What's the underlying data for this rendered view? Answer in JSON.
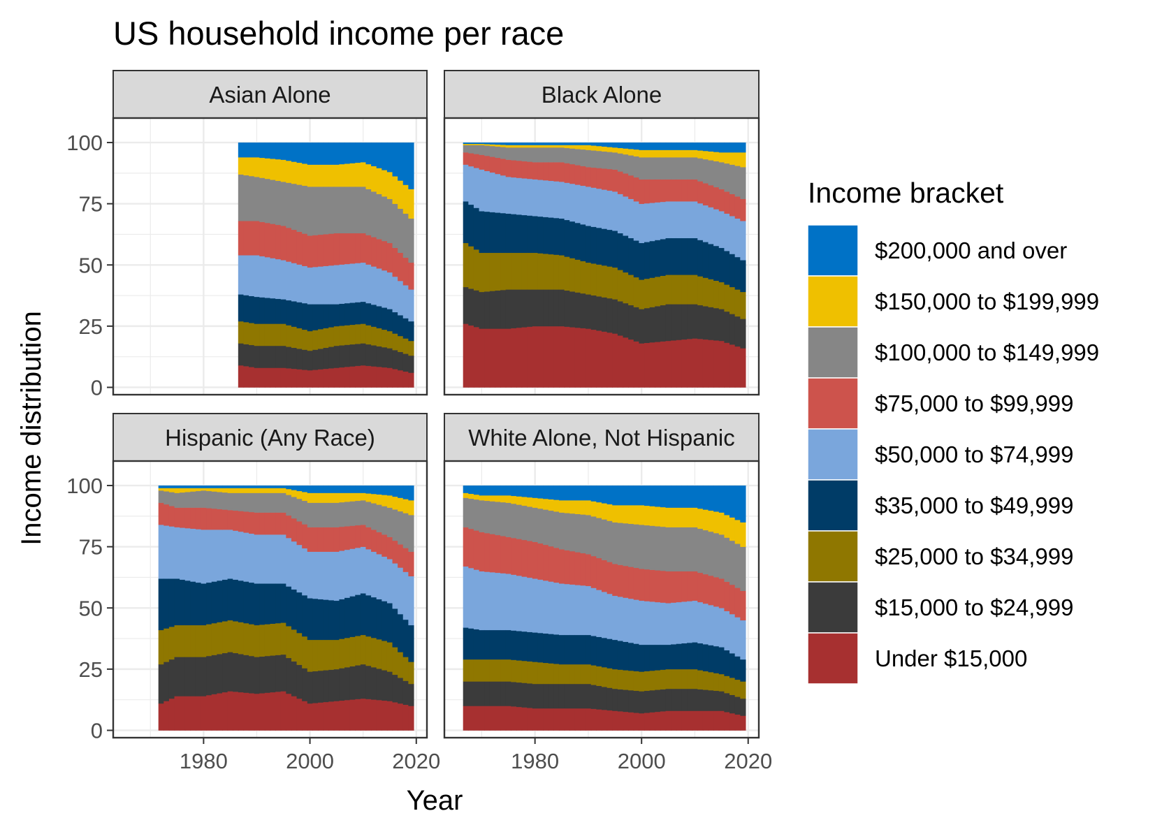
{
  "chart_data": {
    "type": "area",
    "stacked": true,
    "step": true,
    "title": "US household income per race",
    "xlabel": "Year",
    "ylabel": "Income distribution",
    "xlim": [
      1963,
      2022
    ],
    "ylim": [
      -3,
      110
    ],
    "x_ticks": [
      1980,
      2000,
      2020
    ],
    "y_ticks": [
      0,
      25,
      50,
      75,
      100
    ],
    "grid": true,
    "legend": {
      "title": "Income bracket",
      "position": "right",
      "entries": [
        {
          "label": "$200,000 and over",
          "color": "#0072C6"
        },
        {
          "label": "$150,000 to $199,999",
          "color": "#EFC000"
        },
        {
          "label": "$100,000 to $149,999",
          "color": "#868686"
        },
        {
          "label": "$75,000 to $99,999",
          "color": "#CD534C"
        },
        {
          "label": "$50,000 to $74,999",
          "color": "#7AA6DC"
        },
        {
          "label": "$35,000 to $49,999",
          "color": "#003C67"
        },
        {
          "label": "$25,000 to $34,999",
          "color": "#8F7700"
        },
        {
          "label": "$15,000 to $24,999",
          "color": "#3B3B3B"
        },
        {
          "label": "Under $15,000",
          "color": "#A73030"
        }
      ]
    },
    "brackets_bottom_to_top": [
      "Under $15,000",
      "$15,000 to $24,999",
      "$25,000 to $34,999",
      "$35,000 to $49,999",
      "$50,000 to $74,999",
      "$75,000 to $99,999",
      "$100,000 to $149,999",
      "$150,000 to $199,999",
      "$200,000 and over"
    ],
    "facets": [
      {
        "name": "Asian Alone",
        "series": [
          {
            "x": 1987,
            "shares": [
              9,
              9,
              9,
              11,
              16,
              14,
              19,
              7,
              6
            ]
          },
          {
            "x": 1990,
            "shares": [
              8,
              9,
              9,
              11,
              17,
              14,
              18,
              8,
              6
            ]
          },
          {
            "x": 1995,
            "shares": [
              8,
              9,
              9,
              10,
              16,
              14,
              18,
              9,
              7
            ]
          },
          {
            "x": 2000,
            "shares": [
              7,
              8,
              8,
              11,
              15,
              13,
              20,
              9,
              9
            ]
          },
          {
            "x": 2005,
            "shares": [
              8,
              9,
              8,
              9,
              16,
              13,
              19,
              9,
              9
            ]
          },
          {
            "x": 2010,
            "shares": [
              9,
              9,
              8,
              9,
              16,
              12,
              19,
              10,
              8
            ]
          },
          {
            "x": 2015,
            "shares": [
              8,
              8,
              7,
              9,
              15,
              12,
              18,
              11,
              12
            ]
          },
          {
            "x": 2019,
            "shares": [
              6,
              7,
              6,
              8,
              13,
              11,
              18,
              12,
              19
            ]
          }
        ]
      },
      {
        "name": "Black Alone",
        "series": [
          {
            "x": 1967,
            "shares": [
              26,
              15,
              18,
              17,
              15,
              5,
              3,
              0.5,
              0.5
            ]
          },
          {
            "x": 1970,
            "shares": [
              24,
              15,
              16,
              17,
              17,
              6,
              4,
              0.5,
              0.5
            ]
          },
          {
            "x": 1975,
            "shares": [
              24,
              16,
              15,
              16,
              15,
              7,
              5,
              1,
              1
            ]
          },
          {
            "x": 1980,
            "shares": [
              25,
              15,
              15,
              15,
              15,
              7,
              6,
              1,
              1
            ]
          },
          {
            "x": 1985,
            "shares": [
              25,
              15,
              14,
              15,
              15,
              8,
              6,
              1,
              1
            ]
          },
          {
            "x": 1990,
            "shares": [
              24,
              14,
              13,
              15,
              16,
              8,
              7,
              2,
              1
            ]
          },
          {
            "x": 1995,
            "shares": [
              22,
              14,
              13,
              15,
              16,
              9,
              7,
              2,
              2
            ]
          },
          {
            "x": 2000,
            "shares": [
              18,
              14,
              12,
              15,
              16,
              10,
              9,
              3,
              3
            ]
          },
          {
            "x": 2005,
            "shares": [
              19,
              15,
              12,
              15,
              15,
              9,
              9,
              3,
              3
            ]
          },
          {
            "x": 2010,
            "shares": [
              20,
              14,
              12,
              15,
              15,
              9,
              9,
              3,
              3
            ]
          },
          {
            "x": 2015,
            "shares": [
              19,
              13,
              11,
              14,
              15,
              9,
              11,
              4,
              4
            ]
          },
          {
            "x": 2019,
            "shares": [
              16,
              12,
              11,
              13,
              16,
              9,
              13,
              6,
              4
            ]
          }
        ]
      },
      {
        "name": "Hispanic (Any Race)",
        "series": [
          {
            "x": 1972,
            "shares": [
              11,
              16,
              14,
              21,
              22,
              9,
              5,
              1,
              1
            ]
          },
          {
            "x": 1975,
            "shares": [
              14,
              16,
              13,
              19,
              21,
              8,
              6,
              2,
              1
            ]
          },
          {
            "x": 1980,
            "shares": [
              14,
              16,
              13,
              17,
              22,
              9,
              7,
              1,
              1
            ]
          },
          {
            "x": 1985,
            "shares": [
              16,
              16,
              13,
              17,
              20,
              8,
              7,
              2,
              1
            ]
          },
          {
            "x": 1990,
            "shares": [
              15,
              15,
              13,
              17,
              20,
              9,
              8,
              2,
              1
            ]
          },
          {
            "x": 1995,
            "shares": [
              16,
              15,
              13,
              16,
              20,
              9,
              8,
              2,
              1
            ]
          },
          {
            "x": 2000,
            "shares": [
              11,
              13,
              13,
              17,
              19,
              10,
              10,
              4,
              3
            ]
          },
          {
            "x": 2005,
            "shares": [
              12,
              13,
              12,
              16,
              20,
              10,
              10,
              4,
              3
            ]
          },
          {
            "x": 2010,
            "shares": [
              13,
              14,
              12,
              17,
              19,
              9,
              10,
              3,
              3
            ]
          },
          {
            "x": 2015,
            "shares": [
              12,
              12,
              12,
              16,
              18,
              9,
              12,
              5,
              4
            ]
          },
          {
            "x": 2019,
            "shares": [
              10,
              9,
              9,
              15,
              20,
              10,
              15,
              6,
              6
            ]
          }
        ]
      },
      {
        "name": "White Alone, Not Hispanic",
        "series": [
          {
            "x": 1967,
            "shares": [
              10,
              10,
              9,
              13,
              25,
              16,
              12,
              2,
              3
            ]
          },
          {
            "x": 1970,
            "shares": [
              10,
              10,
              9,
              12,
              24,
              16,
              13,
              2,
              4
            ]
          },
          {
            "x": 1975,
            "shares": [
              10,
              10,
              9,
              12,
              23,
              15,
              14,
              3,
              4
            ]
          },
          {
            "x": 1980,
            "shares": [
              9,
              10,
              9,
              12,
              22,
              15,
              14,
              4,
              5
            ]
          },
          {
            "x": 1985,
            "shares": [
              9,
              10,
              8,
              12,
              21,
              14,
              15,
              5,
              6
            ]
          },
          {
            "x": 1990,
            "shares": [
              9,
              10,
              8,
              12,
              20,
              13,
              16,
              6,
              6
            ]
          },
          {
            "x": 1995,
            "shares": [
              8,
              9,
              8,
              12,
              18,
              13,
              17,
              7,
              8
            ]
          },
          {
            "x": 2000,
            "shares": [
              7,
              9,
              8,
              11,
              18,
              13,
              18,
              8,
              8
            ]
          },
          {
            "x": 2005,
            "shares": [
              8,
              9,
              8,
              10,
              17,
              13,
              18,
              8,
              9
            ]
          },
          {
            "x": 2010,
            "shares": [
              8,
              9,
              8,
              11,
              17,
              12,
              18,
              8,
              9
            ]
          },
          {
            "x": 2015,
            "shares": [
              8,
              8,
              7,
              11,
              16,
              12,
              18,
              9,
              11
            ]
          },
          {
            "x": 2019,
            "shares": [
              6,
              7,
              7,
              9,
              16,
              12,
              18,
              10,
              15
            ]
          }
        ]
      }
    ]
  }
}
